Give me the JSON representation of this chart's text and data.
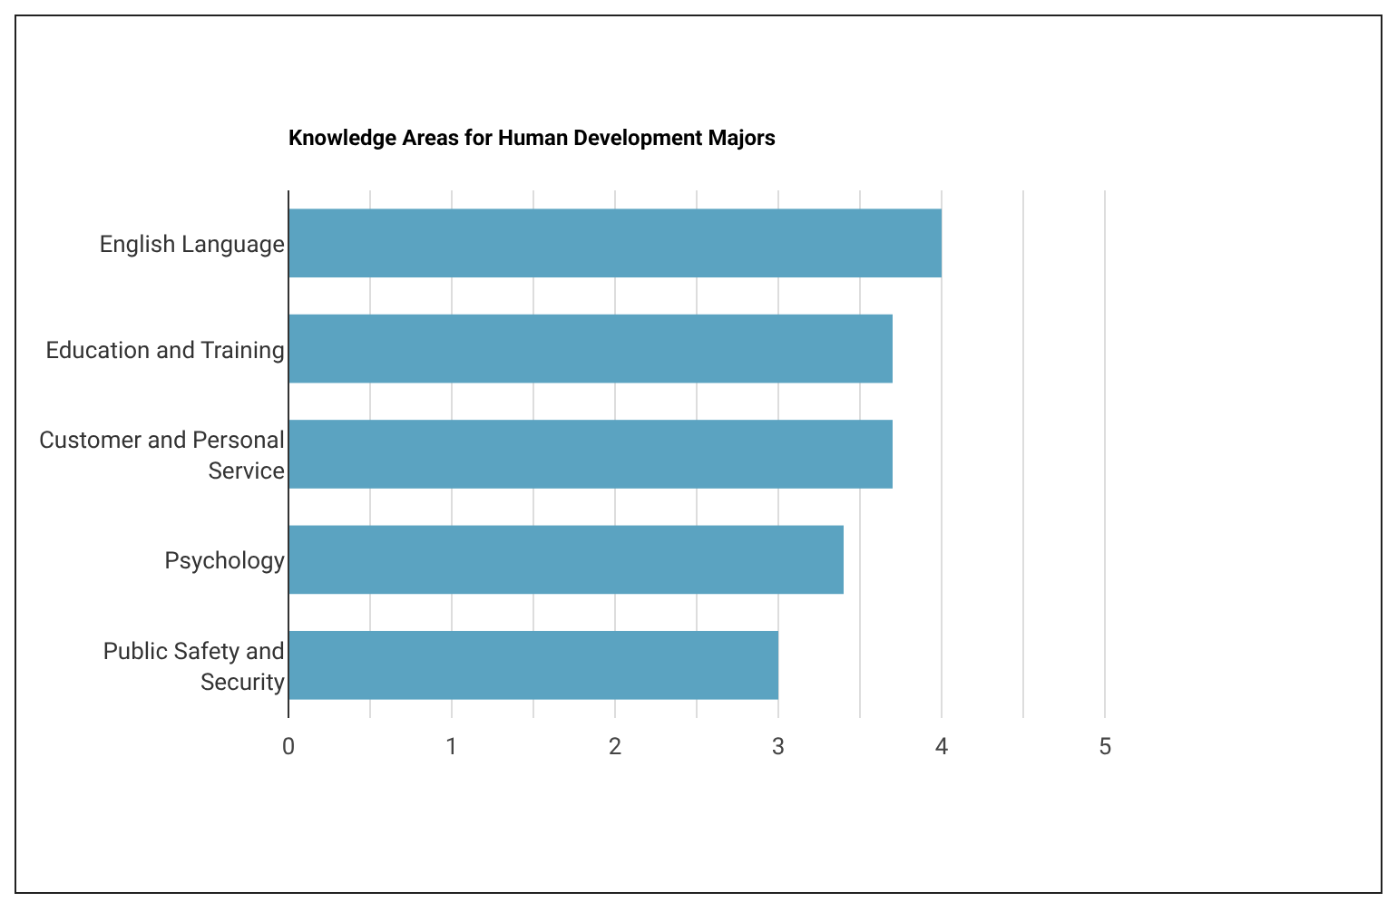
{
  "chart_data": {
    "type": "bar",
    "orientation": "horizontal",
    "title": "Knowledge Areas for Human Development Majors",
    "categories": [
      "English Language",
      "Education and Training",
      "Customer and Personal Service",
      "Psychology",
      "Public Safety and Security"
    ],
    "values": [
      4.0,
      3.7,
      3.7,
      3.4,
      3.0
    ],
    "color": "#5ba3c1",
    "xlim": [
      0,
      5
    ],
    "xticks": [
      0,
      {
        "value": 0.5,
        "label": null
      },
      1,
      {
        "value": 1.5,
        "label": null
      },
      2,
      {
        "value": 2.5,
        "label": null
      },
      3,
      {
        "value": 3.5,
        "label": null
      },
      4,
      {
        "value": 4.5,
        "label": null
      },
      5
    ],
    "grid": "x"
  }
}
